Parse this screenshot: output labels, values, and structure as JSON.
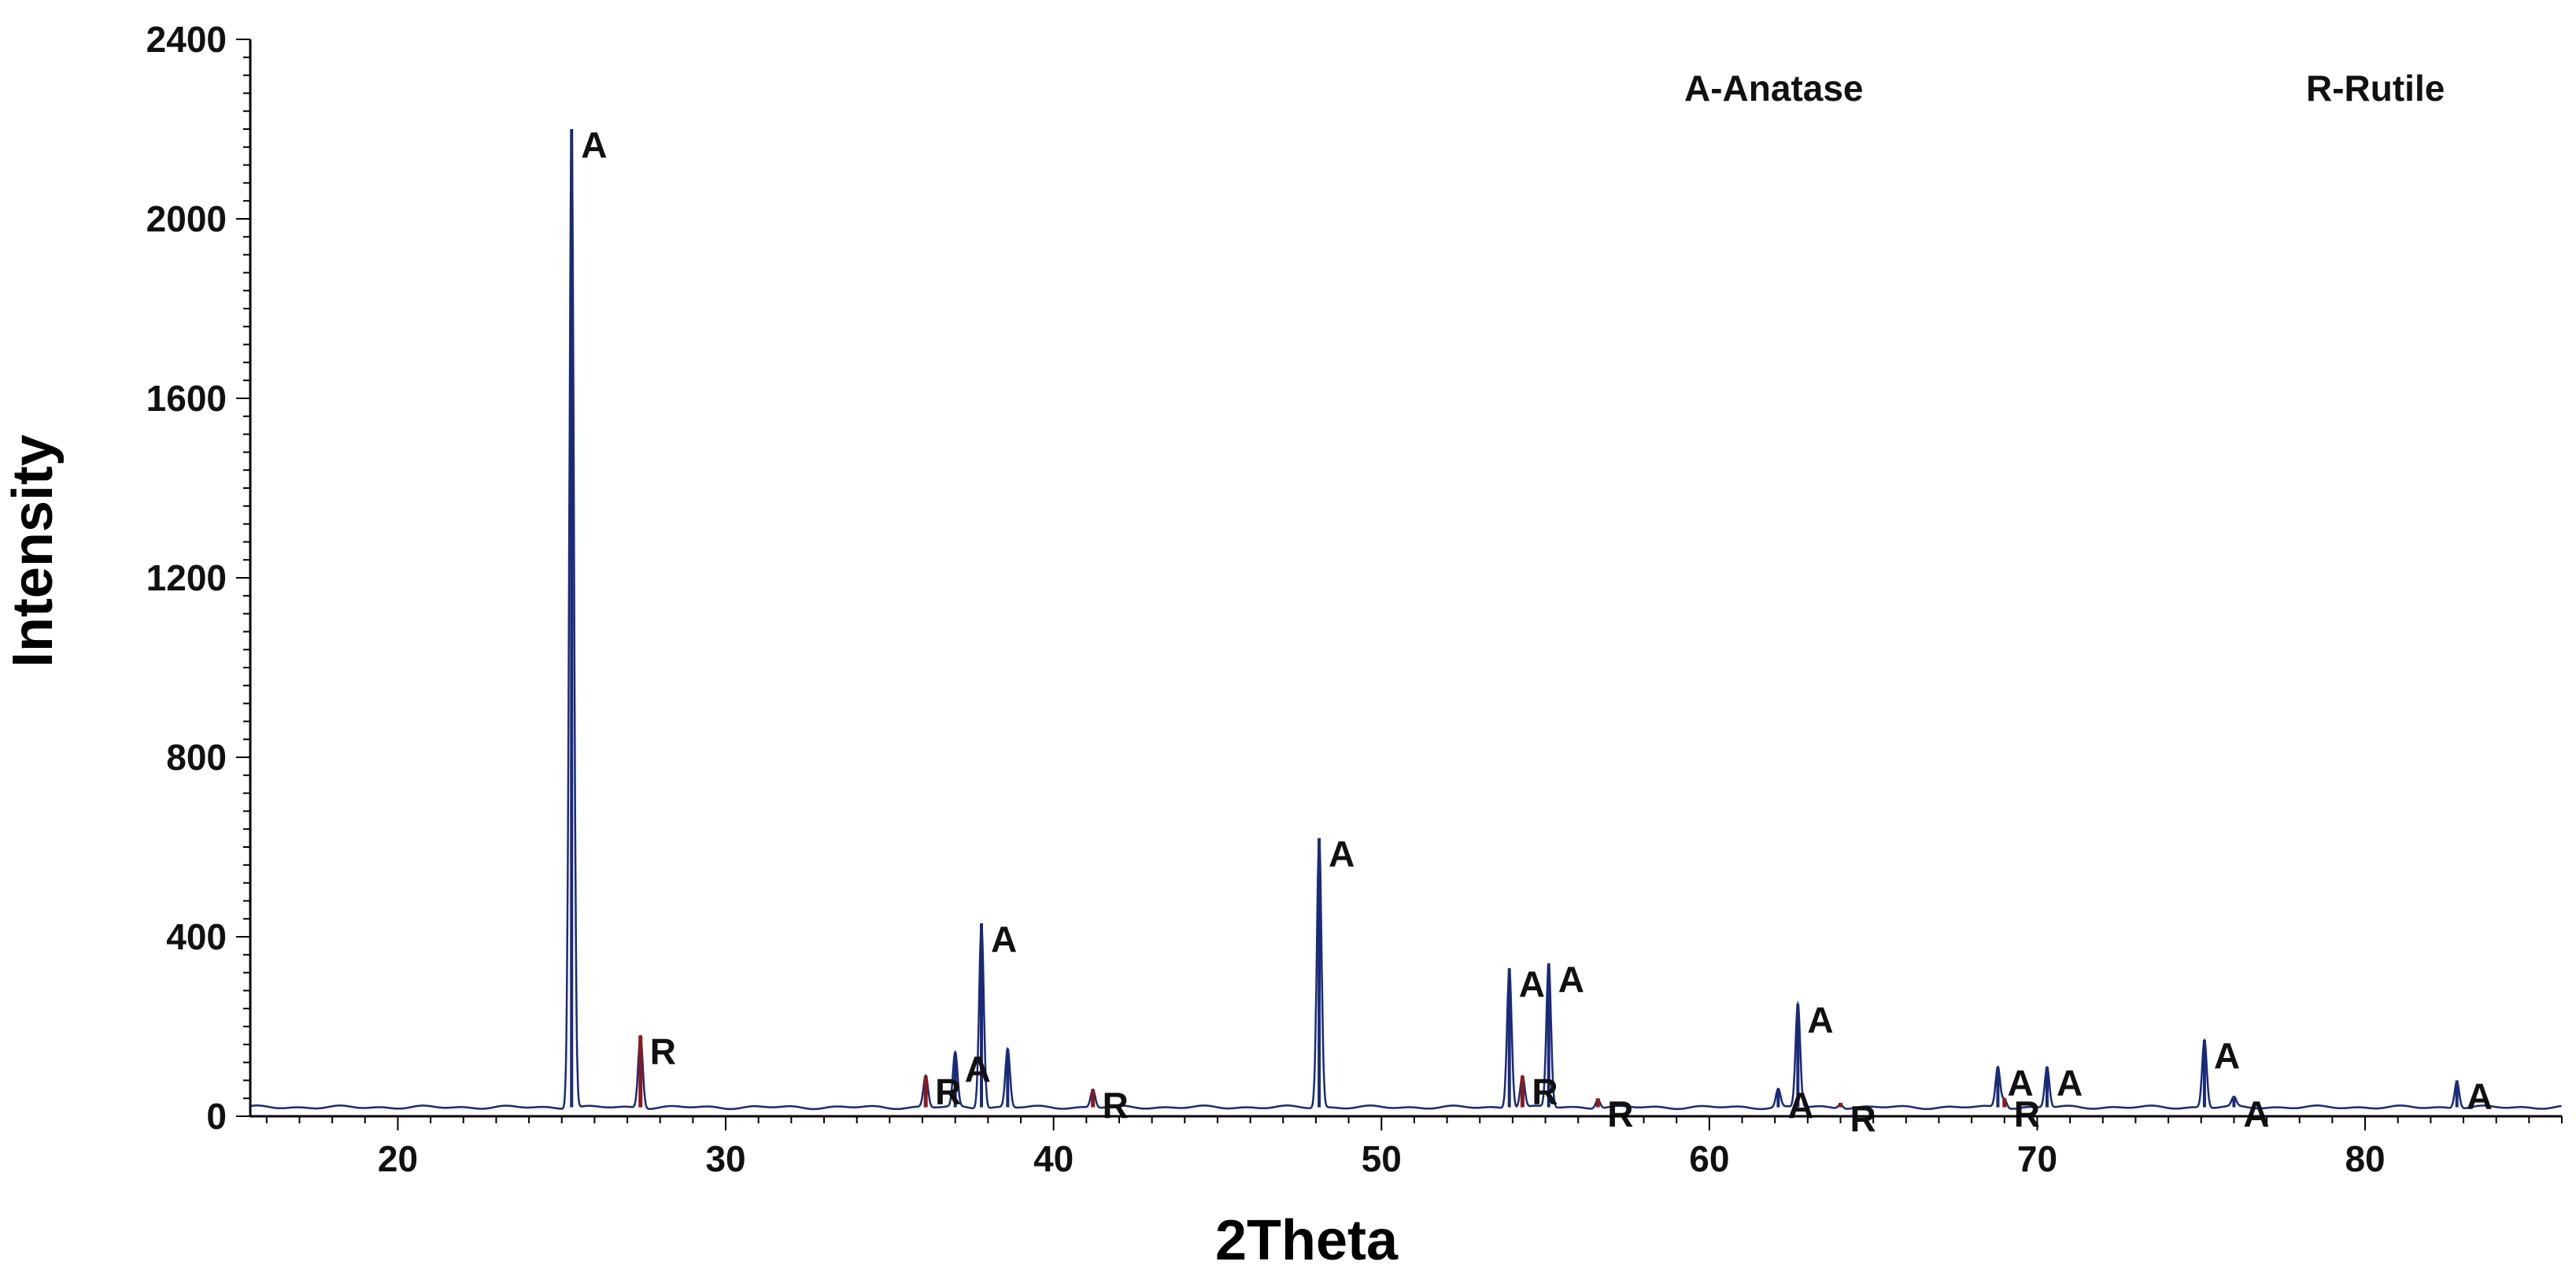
{
  "chart_data": {
    "type": "line",
    "title": "",
    "xlabel": "2Theta",
    "ylabel": "Intensity",
    "xlim": [
      15.5,
      86
    ],
    "ylim": [
      0,
      2400
    ],
    "xticks": [
      20,
      30,
      40,
      50,
      60,
      70,
      80
    ],
    "yticks": [
      0,
      400,
      800,
      1200,
      1600,
      2000,
      2400
    ],
    "grid": false,
    "legend": [
      "A-Anatase",
      "R-Rutile"
    ],
    "legend_placement": "top-right",
    "baseline": 20,
    "colors": {
      "anatase": "#1a2a7a",
      "rutile": "#8b1a1a",
      "axis": "#000000"
    },
    "series": [
      {
        "name": "A-Anatase",
        "peaks": [
          {
            "x": 25.3,
            "y": 2200
          },
          {
            "x": 37.0,
            "y": 140
          },
          {
            "x": 37.8,
            "y": 430
          },
          {
            "x": 38.6,
            "y": 150
          },
          {
            "x": 48.1,
            "y": 620
          },
          {
            "x": 53.9,
            "y": 330
          },
          {
            "x": 55.1,
            "y": 340
          },
          {
            "x": 62.1,
            "y": 60
          },
          {
            "x": 62.7,
            "y": 250
          },
          {
            "x": 68.8,
            "y": 110
          },
          {
            "x": 70.3,
            "y": 110
          },
          {
            "x": 75.1,
            "y": 170
          },
          {
            "x": 76.0,
            "y": 40
          },
          {
            "x": 82.8,
            "y": 80
          }
        ]
      },
      {
        "name": "R-Rutile",
        "peaks": [
          {
            "x": 27.4,
            "y": 180
          },
          {
            "x": 36.1,
            "y": 90
          },
          {
            "x": 41.2,
            "y": 60
          },
          {
            "x": 54.3,
            "y": 90
          },
          {
            "x": 56.6,
            "y": 40
          },
          {
            "x": 64.0,
            "y": 30
          },
          {
            "x": 69.0,
            "y": 40
          }
        ]
      }
    ],
    "annotations": [
      {
        "text": "A",
        "x": 25.3,
        "y": 2200
      },
      {
        "text": "R",
        "x": 27.4,
        "y": 180
      },
      {
        "text": "R",
        "x": 36.1,
        "y": 90
      },
      {
        "text": "A",
        "x": 37.0,
        "y": 140
      },
      {
        "text": "A",
        "x": 37.8,
        "y": 430
      },
      {
        "text": "R",
        "x": 41.2,
        "y": 60
      },
      {
        "text": "A",
        "x": 48.1,
        "y": 620
      },
      {
        "text": "A",
        "x": 53.9,
        "y": 330
      },
      {
        "text": "R",
        "x": 54.3,
        "y": 90
      },
      {
        "text": "A",
        "x": 55.1,
        "y": 340
      },
      {
        "text": "R",
        "x": 56.6,
        "y": 40
      },
      {
        "text": "A",
        "x": 62.1,
        "y": 60
      },
      {
        "text": "A",
        "x": 62.7,
        "y": 250
      },
      {
        "text": "R",
        "x": 64.0,
        "y": 30
      },
      {
        "text": "A",
        "x": 68.8,
        "y": 110
      },
      {
        "text": "R",
        "x": 69.0,
        "y": 40
      },
      {
        "text": "A",
        "x": 70.3,
        "y": 110
      },
      {
        "text": "A",
        "x": 75.1,
        "y": 170
      },
      {
        "text": "A",
        "x": 76.0,
        "y": 40
      },
      {
        "text": "A",
        "x": 82.8,
        "y": 80
      }
    ]
  }
}
